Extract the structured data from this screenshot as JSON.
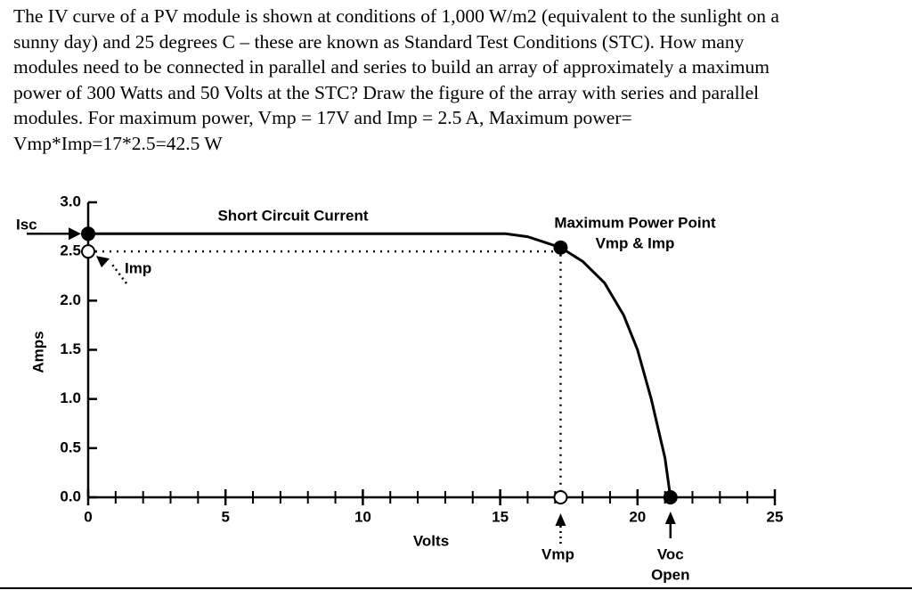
{
  "question": [
    "The IV curve of a PV module is shown at conditions of 1,000 W/m2 (equivalent to the sunlight on a",
    "sunny day) and 25 degrees C – these are known as Standard Test Conditions (STC). How many",
    "modules need to be connected in parallel and series to build an array of approximately a maximum",
    "power of 300 Watts and 50 Volts at the STC? Draw the figure of the array with series and parallel",
    "modules. For maximum power, Vmp = 17V and Imp = 2.5 A, Maximum power=",
    "Vmp*Imp=17*2.5=42.5 W"
  ],
  "chart_data": {
    "type": "line",
    "xlabel": "Volts",
    "ylabel": "Amps",
    "annotation": "Short Circuit Current",
    "xlim": [
      0,
      25
    ],
    "xticks": [
      0,
      5,
      10,
      15,
      20,
      25
    ],
    "xminorticks": [
      1,
      2,
      3,
      4,
      6,
      7,
      8,
      9,
      11,
      12,
      13,
      14,
      16,
      17,
      18,
      19,
      21,
      22,
      23,
      24
    ],
    "ylim": [
      0,
      3
    ],
    "yticks": [
      {
        "value": 0,
        "label": "0.0"
      },
      0.5,
      {
        "value": 1,
        "label": "1.0"
      },
      1.5,
      {
        "value": 2,
        "label": "2.0"
      },
      2.5,
      {
        "value": 3,
        "label": "3.0"
      }
    ],
    "color": "#000000",
    "x": [
      0,
      15.2,
      16,
      17.2,
      18,
      18.8,
      19.5,
      20,
      20.5,
      21,
      21.2
    ],
    "values": [
      2.68,
      2.68,
      2.65,
      2.54,
      2.4,
      2.18,
      1.85,
      1.5,
      1.0,
      0.4,
      0
    ],
    "points": [
      {
        "label": "Isc",
        "x": 0,
        "y": 2.68,
        "filled": true
      },
      {
        "label": "Imp",
        "x": 0,
        "y": 2.5,
        "filled": false
      },
      {
        "label": "Maximum Power Point",
        "sublabel": "Vmp & Imp",
        "x": 17.2,
        "y": 2.54,
        "filled": true
      },
      {
        "label": "Vmp",
        "x": 17.2,
        "y": 0,
        "filled": false
      },
      {
        "label": "Voc",
        "sublabel": "Open",
        "x": 21.2,
        "y": 0,
        "filled": true
      }
    ]
  }
}
